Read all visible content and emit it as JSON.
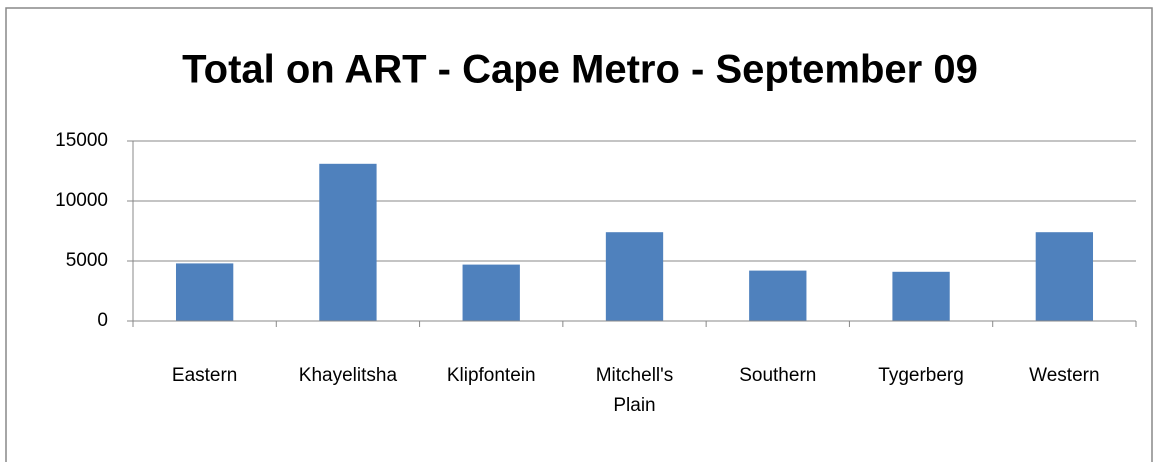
{
  "chart_data": {
    "type": "bar",
    "title": "Total on ART - Cape Metro - September 09",
    "categories": [
      "Eastern",
      "Khayelitsha",
      "Klipfontein",
      "Mitchell's Plain",
      "Southern",
      "Tygerberg",
      "Western"
    ],
    "values": [
      4800,
      13100,
      4700,
      7400,
      4200,
      4100,
      7400
    ],
    "color": "#4f81bd",
    "ylim": [
      0,
      15000
    ],
    "yticks": [
      0,
      5000,
      10000,
      15000
    ],
    "grid": true
  }
}
